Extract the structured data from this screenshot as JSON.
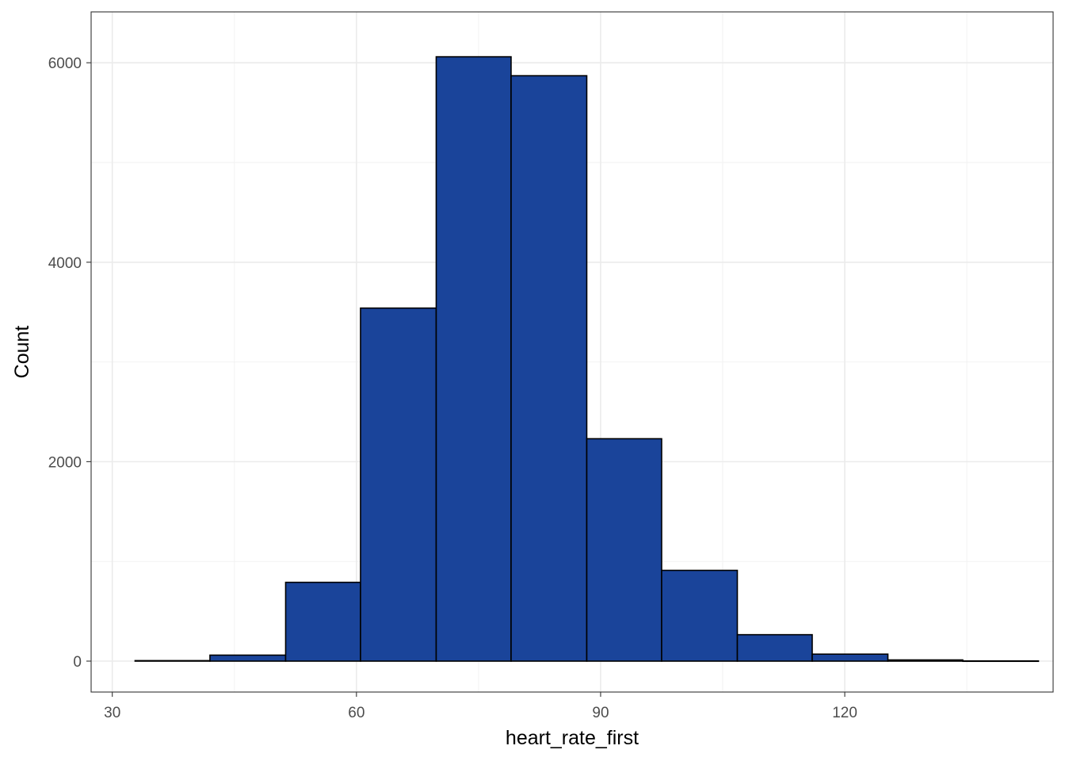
{
  "chart_data": {
    "type": "histogram",
    "title": "",
    "xlabel": "heart_rate_first",
    "ylabel": "Count",
    "xlim": [
      27.4,
      145.6
    ],
    "ylim": [
      -310,
      6510
    ],
    "x_ticks": [
      30,
      60,
      90,
      120
    ],
    "y_ticks": [
      0,
      2000,
      4000,
      6000
    ],
    "x_minor": [
      45,
      75,
      105,
      135
    ],
    "y_minor": [
      1000,
      3000,
      5000
    ],
    "grid": true,
    "bar_fill": "#1a449a",
    "bar_stroke": "#000000",
    "bins": [
      {
        "x0": 32.8,
        "x1": 42.0,
        "count": 5
      },
      {
        "x0": 42.0,
        "x1": 51.3,
        "count": 60
      },
      {
        "x0": 51.3,
        "x1": 60.5,
        "count": 790
      },
      {
        "x0": 60.5,
        "x1": 69.8,
        "count": 3540
      },
      {
        "x0": 69.8,
        "x1": 79.0,
        "count": 6060
      },
      {
        "x0": 79.0,
        "x1": 88.3,
        "count": 5870
      },
      {
        "x0": 88.3,
        "x1": 97.5,
        "count": 2230
      },
      {
        "x0": 97.5,
        "x1": 106.8,
        "count": 910
      },
      {
        "x0": 106.8,
        "x1": 116.0,
        "count": 265
      },
      {
        "x0": 116.0,
        "x1": 125.3,
        "count": 70
      },
      {
        "x0": 125.3,
        "x1": 134.5,
        "count": 12
      },
      {
        "x0": 134.5,
        "x1": 143.8,
        "count": 2
      }
    ]
  }
}
